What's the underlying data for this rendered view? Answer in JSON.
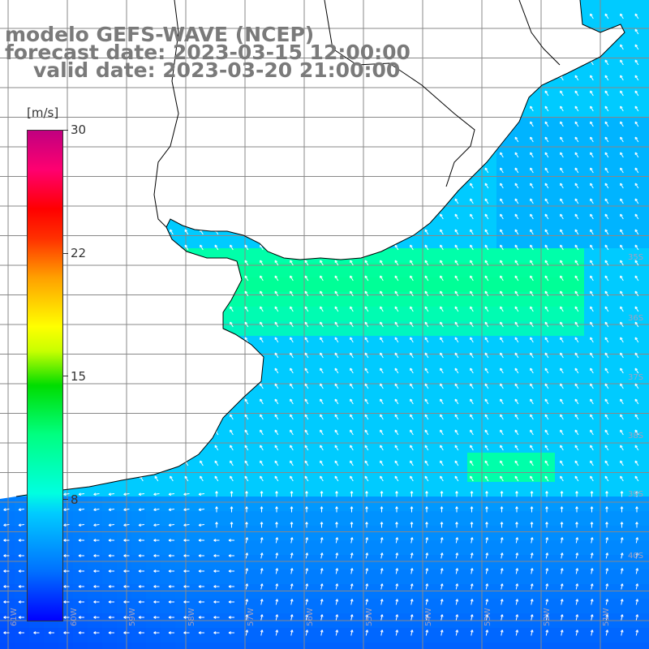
{
  "title": {
    "line1": "modelo GEFS-WAVE (NCEP)",
    "line2": "forecast date: 2023-03-15 12:00:00",
    "line3": "valid date: 2023-03-20 21:00:00"
  },
  "colorbar": {
    "unit": "[m/s]",
    "ticks": [
      "30",
      "22",
      "15",
      "8"
    ],
    "range": [
      0,
      30
    ],
    "colors": [
      "#0000ff",
      "#00ccff",
      "#00ff80",
      "#00dd00",
      "#ffff00",
      "#ff8000",
      "#ff0000",
      "#c00080"
    ]
  },
  "map": {
    "land_color": "#ffffff",
    "coast_color": "#000000",
    "grid_color": "#888888",
    "arrow_color": "#ffffff",
    "lon_labels": [
      "61W",
      "60W",
      "59W",
      "58W",
      "57W",
      "56W",
      "55W",
      "54W",
      "53W",
      "52W",
      "51W"
    ],
    "lat_labels": [
      "35S",
      "36S",
      "37S",
      "38S",
      "39S",
      "40S"
    ]
  }
}
